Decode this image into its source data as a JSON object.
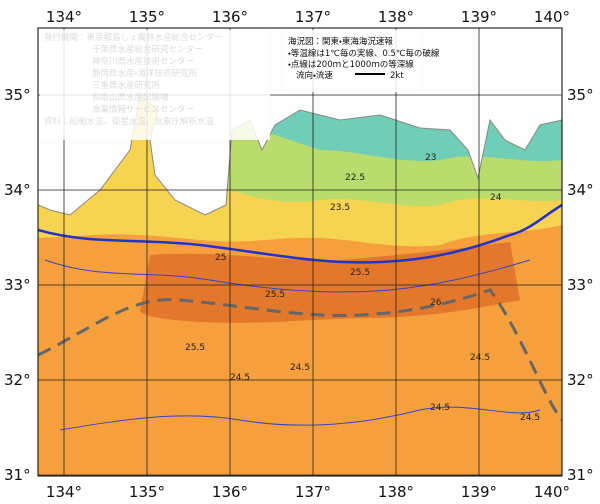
{
  "axes": {
    "lon_labels": [
      "134°",
      "135°",
      "136°",
      "137°",
      "138°",
      "139°",
      "140°"
    ],
    "lat_labels": [
      "35°",
      "34°",
      "33°",
      "32°",
      "31°"
    ]
  },
  "legend_left": [
    "発行機関：東京都島しょ農林水産総合センター",
    "千葉県水産総合研究センター",
    "神奈川県水産技術センター",
    "静岡県水産・海洋技術研究所",
    "三重県水産研究所",
    "和歌山県水産試験場",
    "漁業情報サービスセンター",
    "資料：船舶水温、衛星水温、気象庁解析水温"
  ],
  "legend_right": {
    "title": "海況図：関東・東海海況速報",
    "lines": [
      "・等温線は1℃毎の実線、0.5℃毎の破線",
      "・点線は200ｍと1000ｍの等深線"
    ],
    "current_label": "流向・流速",
    "current_scale": "2kt"
  },
  "contour_labels": [
    "22.5",
    "23",
    "23.5",
    "24",
    "25.5",
    "25.5",
    "26",
    "25",
    "24.5",
    "24.5",
    "24.5",
    "24.5",
    "24.5",
    "25.5"
  ]
}
